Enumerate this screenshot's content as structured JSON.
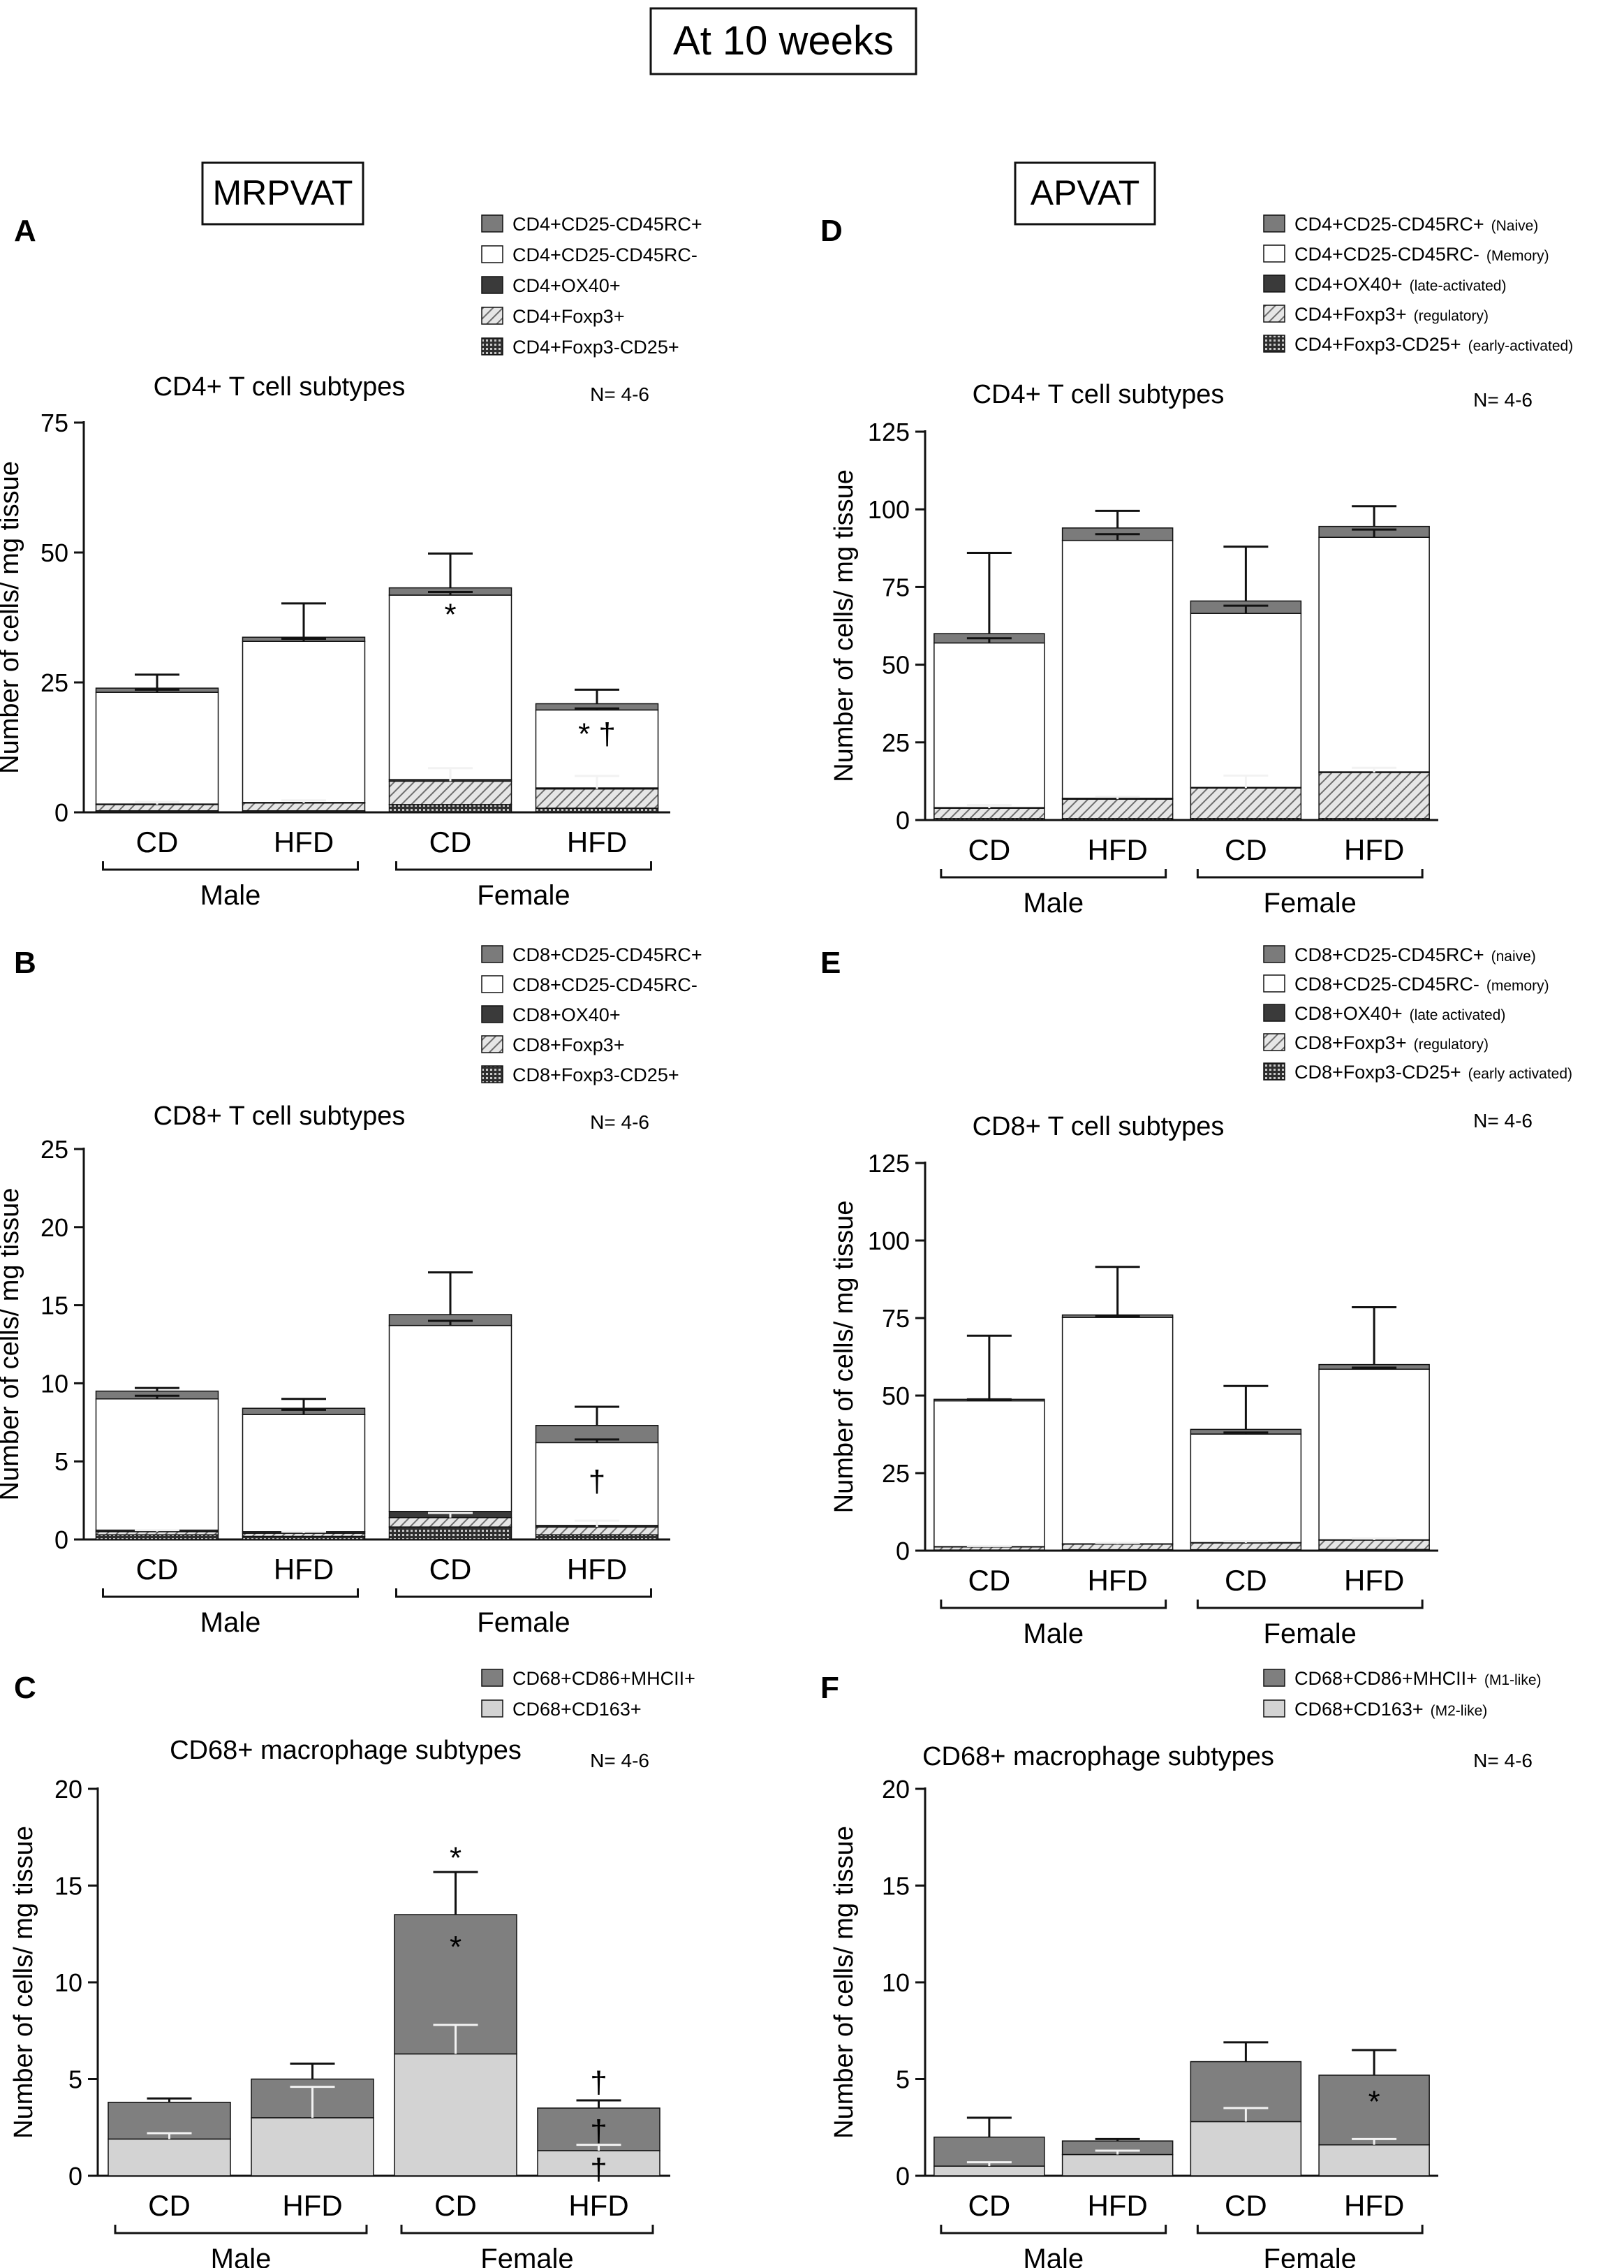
{
  "figure_title": "At 10 weeks",
  "column_labels": {
    "left": "MRPVAT",
    "right": "APVAT"
  },
  "colors": {
    "naive": "#7b7b7b",
    "memory": "#ffffff",
    "late": "#3a3a3a",
    "m1": "#7f7f7f",
    "m2": "#d3d3d3",
    "axis": "#111111",
    "error_light": "#f2f2f2"
  },
  "chart_data": [
    {
      "id": "A",
      "type": "bar",
      "stacked": true,
      "title": "CD4+ T cell subtypes",
      "n_label": "N= 4-6",
      "ylabel": "Number of cells/ mg tissue",
      "ylim": [
        0,
        75
      ],
      "yticks": [
        0,
        25,
        50,
        75
      ],
      "categories": [
        "CD",
        "HFD",
        "CD",
        "HFD"
      ],
      "groups": [
        "Male",
        "Female"
      ],
      "legend": [
        "CD4+CD25-CD45RC+",
        "CD4+CD25-CD45RC-",
        "CD4+OX40+",
        "CD4+Foxp3+",
        "CD4+Foxp3-CD25+"
      ],
      "series": [
        {
          "name": "CD4+Foxp3-CD25+",
          "fill": "grid",
          "values": [
            0.3,
            0.3,
            1.5,
            0.8
          ]
        },
        {
          "name": "CD4+Foxp3+",
          "fill": "hatch",
          "values": [
            1.2,
            1.5,
            4.5,
            3.7
          ],
          "errors": [
            0.5,
            0.5,
            2.5,
            2.5
          ]
        },
        {
          "name": "CD4+OX40+",
          "fill": "dark",
          "values": [
            0.1,
            0.1,
            0.3,
            0.2
          ]
        },
        {
          "name": "CD4+CD25-CD45RC-",
          "fill": "white",
          "values": [
            21.5,
            31.0,
            35.5,
            15.0
          ],
          "errors": [
            0.5,
            0.5,
            0.6,
            0.3
          ]
        },
        {
          "name": "CD4+CD25-CD45RC+",
          "fill": "naive",
          "values": [
            0.8,
            0.8,
            1.4,
            1.2
          ],
          "errors": [
            2.6,
            6.5,
            6.6,
            2.7
          ]
        }
      ],
      "annotations": [
        {
          "text": "*",
          "category": 2,
          "y": 38
        },
        {
          "text": "* †",
          "category": 3,
          "y": 15
        }
      ]
    },
    {
      "id": "B",
      "type": "bar",
      "stacked": true,
      "title": "CD8+ T cell subtypes",
      "n_label": "N= 4-6",
      "ylabel": "Number of cells/ mg tissue",
      "ylim": [
        0,
        25
      ],
      "yticks": [
        0,
        5,
        10,
        15,
        20,
        25
      ],
      "categories": [
        "CD",
        "HFD",
        "CD",
        "HFD"
      ],
      "groups": [
        "Male",
        "Female"
      ],
      "legend": [
        "CD8+CD25-CD45RC+",
        "CD8+CD25-CD45RC-",
        "CD8+OX40+",
        "CD8+Foxp3+",
        "CD8+Foxp3-CD25+"
      ],
      "series": [
        {
          "name": "CD8+Foxp3-CD25+",
          "fill": "grid",
          "values": [
            0.3,
            0.2,
            0.8,
            0.3
          ]
        },
        {
          "name": "CD8+Foxp3+",
          "fill": "hatch",
          "values": [
            0.2,
            0.2,
            0.6,
            0.5
          ],
          "errors": [
            0.1,
            0.1,
            0.3,
            0.4
          ]
        },
        {
          "name": "CD8+OX40+",
          "fill": "dark",
          "values": [
            0.1,
            0.1,
            0.4,
            0.1
          ]
        },
        {
          "name": "CD8+CD25-CD45RC-",
          "fill": "white",
          "values": [
            8.4,
            7.5,
            11.9,
            5.3
          ],
          "errors": [
            0.2,
            0.3,
            0.3,
            0.2
          ]
        },
        {
          "name": "CD8+CD25-CD45RC+",
          "fill": "naive",
          "values": [
            0.5,
            0.4,
            0.7,
            1.1
          ],
          "errors": [
            0.2,
            0.6,
            2.7,
            1.2
          ]
        }
      ],
      "annotations": [
        {
          "text": "†",
          "category": 3,
          "y": 3.7
        }
      ]
    },
    {
      "id": "C",
      "type": "bar",
      "stacked": true,
      "title": "CD68+ macrophage subtypes",
      "n_label": "N= 4-6",
      "ylabel": "Number of cells/ mg tissue",
      "ylim": [
        0,
        20
      ],
      "yticks": [
        0,
        5,
        10,
        15,
        20
      ],
      "categories": [
        "CD",
        "HFD",
        "CD",
        "HFD"
      ],
      "groups": [
        "Male",
        "Female"
      ],
      "legend": [
        "CD68+CD86+MHCII+",
        "CD68+CD163+"
      ],
      "series": [
        {
          "name": "CD68+CD163+",
          "fill": "m2",
          "values": [
            1.9,
            3.0,
            6.3,
            1.3
          ],
          "errors": [
            0.3,
            1.6,
            1.5,
            0.3
          ]
        },
        {
          "name": "CD68+CD86+MHCII+",
          "fill": "m1",
          "values": [
            1.9,
            2.0,
            7.2,
            2.2
          ],
          "errors": [
            0.2,
            0.8,
            2.2,
            0.4
          ]
        }
      ],
      "annotations": [
        {
          "text": "*",
          "category": 2,
          "y": 16.4
        },
        {
          "text": "*",
          "category": 2,
          "y": 11.8
        },
        {
          "text": "†",
          "category": 3,
          "y": 4.8
        },
        {
          "text": "†",
          "category": 3,
          "y": 2.3
        },
        {
          "text": "†",
          "category": 3,
          "y": 0.3
        }
      ]
    },
    {
      "id": "D",
      "type": "bar",
      "stacked": true,
      "title": "CD4+ T cell subtypes",
      "n_label": "N= 4-6",
      "ylabel": "Number of cells/ mg tissue",
      "ylim": [
        0,
        125
      ],
      "yticks": [
        0,
        25,
        50,
        75,
        100,
        125
      ],
      "categories": [
        "CD",
        "HFD",
        "CD",
        "HFD"
      ],
      "groups": [
        "Male",
        "Female"
      ],
      "legend": [
        {
          "main": "CD4+CD25-CD45RC+",
          "sub": "(Naive)"
        },
        {
          "main": "CD4+CD25-CD45RC-",
          "sub": "(Memory)"
        },
        {
          "main": "CD4+OX40+",
          "sub": "(late-activated)"
        },
        {
          "main": "CD4+Foxp3+",
          "sub": "(regulatory)"
        },
        {
          "main": "CD4+Foxp3-CD25+",
          "sub": "(early-activated)"
        }
      ],
      "series": [
        {
          "name": "CD4+Foxp3-CD25+",
          "fill": "grid",
          "values": [
            0.5,
            0.5,
            0.5,
            0.5
          ]
        },
        {
          "name": "CD4+Foxp3+",
          "fill": "hatch",
          "values": [
            3.3,
            6.2,
            9.8,
            14.8
          ],
          "errors": [
            1.0,
            0.8,
            4.0,
            1.5
          ]
        },
        {
          "name": "CD4+OX40+",
          "fill": "dark",
          "values": [
            0.2,
            0.3,
            0.2,
            0.2
          ]
        },
        {
          "name": "CD4+CD25-CD45RC-",
          "fill": "white",
          "values": [
            53.0,
            83.0,
            56.0,
            75.5
          ],
          "errors": [
            1.5,
            2.0,
            2.5,
            2.5
          ]
        },
        {
          "name": "CD4+CD25-CD45RC+",
          "fill": "naive",
          "values": [
            3.0,
            4.0,
            4.0,
            3.5
          ],
          "errors": [
            26.0,
            5.5,
            17.5,
            6.5
          ]
        }
      ],
      "annotations": []
    },
    {
      "id": "E",
      "type": "bar",
      "stacked": true,
      "title": "CD8+ T cell subtypes",
      "n_label": "N= 4-6",
      "ylabel": "Number of cells/ mg tissue",
      "ylim": [
        0,
        125
      ],
      "yticks": [
        0,
        25,
        50,
        75,
        100,
        125
      ],
      "categories": [
        "CD",
        "HFD",
        "CD",
        "HFD"
      ],
      "groups": [
        "Male",
        "Female"
      ],
      "legend": [
        {
          "main": "CD8+CD25-CD45RC+",
          "sub": "(naive)"
        },
        {
          "main": "CD8+CD25-CD45RC-",
          "sub": "(memory)"
        },
        {
          "main": "CD8+OX40+",
          "sub": "(late activated)"
        },
        {
          "main": "CD8+Foxp3+",
          "sub": "(regulatory)"
        },
        {
          "main": "CD8+Foxp3-CD25+",
          "sub": "(early activated)"
        }
      ],
      "series": [
        {
          "name": "CD8+Foxp3-CD25+",
          "fill": "grid",
          "values": [
            0.2,
            0.3,
            0.3,
            0.4
          ]
        },
        {
          "name": "CD8+Foxp3+",
          "fill": "hatch",
          "values": [
            1.0,
            1.8,
            2.2,
            3.0
          ],
          "errors": [
            0.3,
            0.4,
            0.5,
            0.5
          ]
        },
        {
          "name": "CD8+OX40+",
          "fill": "dark",
          "values": [
            0.1,
            0.1,
            0.1,
            0.1
          ]
        },
        {
          "name": "CD8+CD25-CD45RC-",
          "fill": "white",
          "values": [
            47.0,
            73.0,
            35.0,
            55.0
          ],
          "errors": [
            0.5,
            0.5,
            0.5,
            0.5
          ]
        },
        {
          "name": "CD8+CD25-CD45RC+",
          "fill": "naive",
          "values": [
            0.5,
            0.8,
            1.5,
            1.5
          ],
          "errors": [
            20.5,
            15.5,
            14.0,
            18.5
          ]
        }
      ],
      "annotations": []
    },
    {
      "id": "F",
      "type": "bar",
      "stacked": true,
      "title": "CD68+ macrophage subtypes",
      "n_label": "N= 4-6",
      "ylabel": "Number of cells/ mg tissue",
      "ylim": [
        0,
        20
      ],
      "yticks": [
        0,
        5,
        10,
        15,
        20
      ],
      "categories": [
        "CD",
        "HFD",
        "CD",
        "HFD"
      ],
      "groups": [
        "Male",
        "Female"
      ],
      "legend": [
        {
          "main": "CD68+CD86+MHCII+",
          "sub": "(M1-like)"
        },
        {
          "main": "CD68+CD163+",
          "sub": "(M2-like)"
        }
      ],
      "series": [
        {
          "name": "CD68+CD163+",
          "fill": "m2",
          "values": [
            0.5,
            1.1,
            2.8,
            1.6
          ],
          "errors": [
            0.2,
            0.2,
            0.7,
            0.3
          ]
        },
        {
          "name": "CD68+CD86+MHCII+",
          "fill": "m1",
          "values": [
            1.5,
            0.7,
            3.1,
            3.6
          ],
          "errors": [
            1.0,
            0.1,
            1.0,
            1.3
          ]
        }
      ],
      "annotations": [
        {
          "text": "*",
          "category": 3,
          "y": 3.8
        }
      ]
    }
  ]
}
